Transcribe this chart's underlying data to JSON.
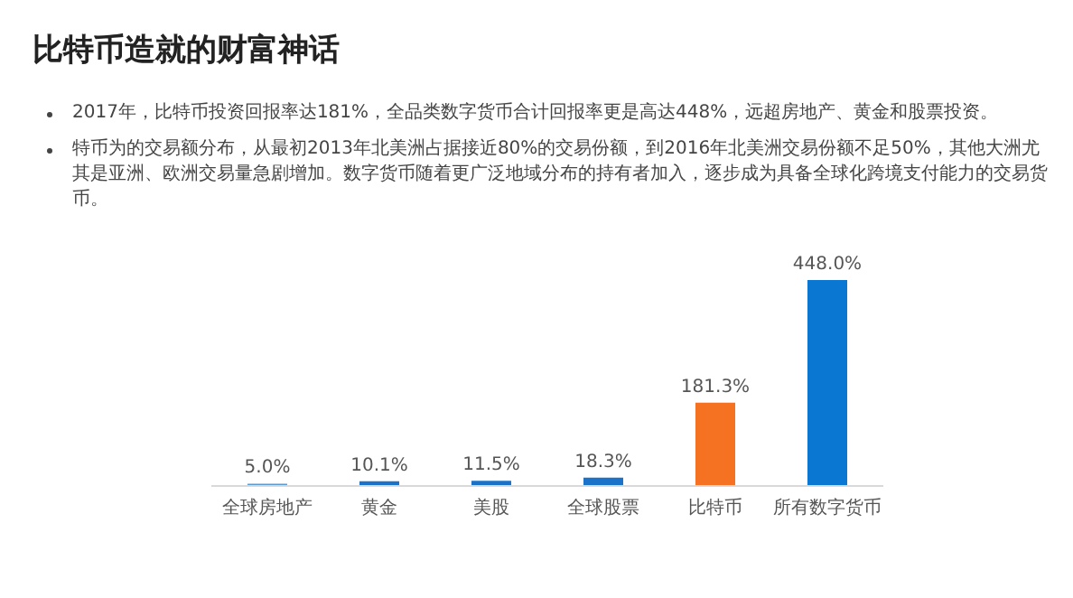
{
  "chart_data": {
    "type": "bar",
    "title": "比特币造就的财富神话",
    "annotations": [
      "2017年，比特币投资回报率达181%，全品类数字货币合计回报率更是高达448%，远超房地产、黄金和股票投资。",
      "特币为的交易额分布，从最初2013年北美洲占据接近80%的交易份额，到2016年北美洲交易份额不足50%，其他大洲尤其是亚洲、欧洲交易量急剧增加。数字货币随着更广泛地域分布的持有者加入，逐步成为具备全球化跨境支付能力的交易货币。"
    ],
    "categories": [
      "全球房地产",
      "黄金",
      "美股",
      "全球股票",
      "比特币",
      "所有数字货币"
    ],
    "values": [
      5.0,
      10.1,
      11.5,
      18.3,
      181.3,
      448.0
    ],
    "colors": [
      "#5b9bd5",
      "#1a73c9",
      "#1a73c9",
      "#1a73c9",
      "#f47221",
      "#0a78d2"
    ],
    "value_labels": [
      "5.0%",
      "10.1%",
      "11.5%",
      "18.3%",
      "181.3%",
      "448.0%"
    ]
  }
}
